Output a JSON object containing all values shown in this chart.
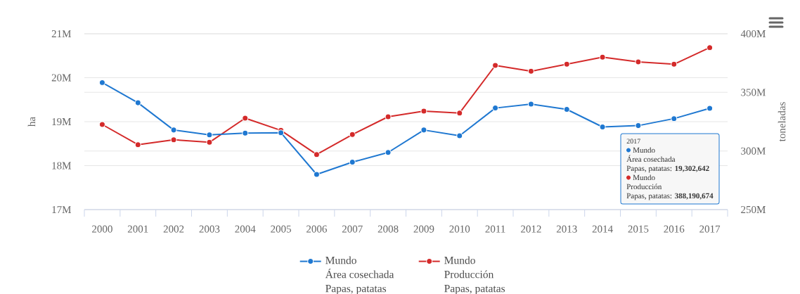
{
  "chart_data": {
    "type": "line",
    "ylabel": "ha",
    "y2label": "toneladas",
    "categories": [
      "2000",
      "2001",
      "2002",
      "2003",
      "2004",
      "2005",
      "2006",
      "2007",
      "2008",
      "2009",
      "2010",
      "2011",
      "2012",
      "2013",
      "2014",
      "2015",
      "2016",
      "2017"
    ],
    "series": [
      {
        "name": "Mundo Área cosechada Papas, patatas",
        "color": "#1f78d1",
        "values": [
          19890000,
          19430000,
          18810000,
          18700000,
          18740000,
          18750000,
          17800000,
          18080000,
          18300000,
          18810000,
          18680000,
          19310000,
          19400000,
          19280000,
          18880000,
          18910000,
          19070000,
          19302642
        ]
      },
      {
        "name": "Mundo Producción Papas, patatas",
        "color": "#d42a2a",
        "axis": "y2",
        "values": [
          322600000,
          305400000,
          309600000,
          307400000,
          328000000,
          317600000,
          297000000,
          314000000,
          329200000,
          334000000,
          332400000,
          373000000,
          368000000,
          374000000,
          380000000,
          376000000,
          374000000,
          388190674
        ]
      }
    ],
    "ylim": [
      17000000,
      21000000
    ],
    "yticks": [
      {
        "value": 17000000,
        "label": "17M"
      },
      {
        "value": 18000000,
        "label": "18M"
      },
      {
        "value": 19000000,
        "label": "19M"
      },
      {
        "value": 20000000,
        "label": "20M"
      },
      {
        "value": 21000000,
        "label": "21M"
      }
    ],
    "y2lim": [
      250000000,
      400000000
    ],
    "y2ticks": [
      {
        "value": 250000000,
        "label": "250M"
      },
      {
        "value": 300000000,
        "label": "300M"
      },
      {
        "value": 350000000,
        "label": "350M"
      },
      {
        "value": 400000000,
        "label": "400M"
      }
    ],
    "annotations": [
      "2017",
      "Mundo",
      "Área cosechada",
      "Papas, patatas: **19,302,642**",
      "Mundo",
      "Producción",
      "Papas, patatas: **388,190,674**"
    ],
    "grid": "y",
    "legend": "bottom",
    "marker": "circle",
    "line_style": "solid"
  }
}
